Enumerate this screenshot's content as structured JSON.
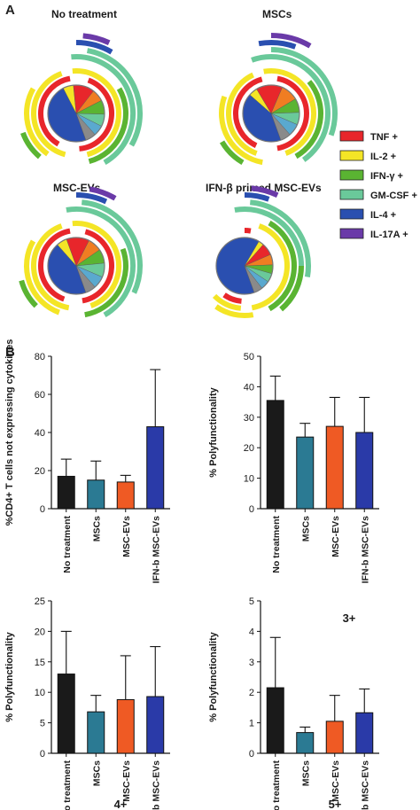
{
  "panels": {
    "a_label": "A",
    "b_label": "B"
  },
  "pie_titles": [
    "No treatment",
    "MSCs",
    "MSC-EVs",
    "IFN-β primed MSC-EVs"
  ],
  "legend": [
    {
      "label": "TNF +",
      "color": "#e8262b"
    },
    {
      "label": "IL-2 +",
      "color": "#f4e526"
    },
    {
      "label": "IFN-γ +",
      "color": "#5ab432"
    },
    {
      "label": "GM-CSF +",
      "color": "#6ac99a"
    },
    {
      "label": "IL-4 +",
      "color": "#2a4fb0"
    },
    {
      "label": "IL-17A +",
      "color": "#6a3aa8"
    }
  ],
  "pie_slices": [
    {
      "name": "IL-4",
      "color": "#2a4fb0"
    },
    {
      "name": "IL-2",
      "color": "#f4e526"
    },
    {
      "name": "TNF",
      "color": "#e8262b"
    },
    {
      "name": "orange",
      "color": "#f07d22"
    },
    {
      "name": "IFN",
      "color": "#5ab432"
    },
    {
      "name": "GM-CSF",
      "color": "#6ac99a"
    },
    {
      "name": "lightblue",
      "color": "#5aa9cf"
    },
    {
      "name": "grey",
      "color": "#8a8a8a"
    }
  ],
  "chart_data": [
    {
      "type": "bar",
      "categories": [
        "No treatment",
        "MSCs",
        "MSC-EVs",
        "IFN-b MSC-EVs"
      ],
      "values": [
        17,
        15,
        14,
        43
      ],
      "errors": [
        9,
        10,
        3.5,
        30
      ],
      "colors": [
        "#1a1a1a",
        "#2b7a93",
        "#ef5a24",
        "#2a3aa8"
      ],
      "ylabel": "%CD4+ T cells not expressing cytokines",
      "ylim": [
        0,
        80
      ],
      "yticks": [
        0,
        20,
        40,
        60,
        80
      ],
      "subtitle": ""
    },
    {
      "type": "bar",
      "categories": [
        "No treatment",
        "MSCs",
        "MSC-EVs",
        "IFN-b MSC-EVs"
      ],
      "values": [
        35.5,
        23.5,
        27,
        25
      ],
      "errors": [
        8,
        4.5,
        9.5,
        11.5
      ],
      "colors": [
        "#1a1a1a",
        "#2b7a93",
        "#ef5a24",
        "#2a3aa8"
      ],
      "ylabel": "% Polyfunctionality",
      "ylim": [
        0,
        50
      ],
      "yticks": [
        0,
        10,
        20,
        30,
        40,
        50
      ],
      "subtitle": "3+"
    },
    {
      "type": "bar",
      "categories": [
        "No treatment",
        "MSCs",
        "MSC-EVs",
        "IFN-b MSC-EVs"
      ],
      "values": [
        13,
        6.8,
        8.8,
        9.3
      ],
      "errors": [
        7,
        2.7,
        7.2,
        8.2
      ],
      "colors": [
        "#1a1a1a",
        "#2b7a93",
        "#ef5a24",
        "#2a3aa8"
      ],
      "ylabel": "% Polyfunctionality",
      "ylim": [
        0,
        25
      ],
      "yticks": [
        0,
        5,
        10,
        15,
        20,
        25
      ],
      "subtitle": "4+"
    },
    {
      "type": "bar",
      "categories": [
        "No treatment",
        "MSCs",
        "MSC-EVs",
        "IFN-b MSC-EVs"
      ],
      "values": [
        2.15,
        0.68,
        1.05,
        1.33
      ],
      "errors": [
        1.65,
        0.18,
        0.85,
        0.78
      ],
      "colors": [
        "#1a1a1a",
        "#2b7a93",
        "#ef5a24",
        "#2a3aa8"
      ],
      "ylabel": "% Polyfunctionality",
      "ylim": [
        0,
        5
      ],
      "yticks": [
        0,
        1,
        2,
        3,
        4,
        5
      ],
      "subtitle": "5+"
    }
  ]
}
